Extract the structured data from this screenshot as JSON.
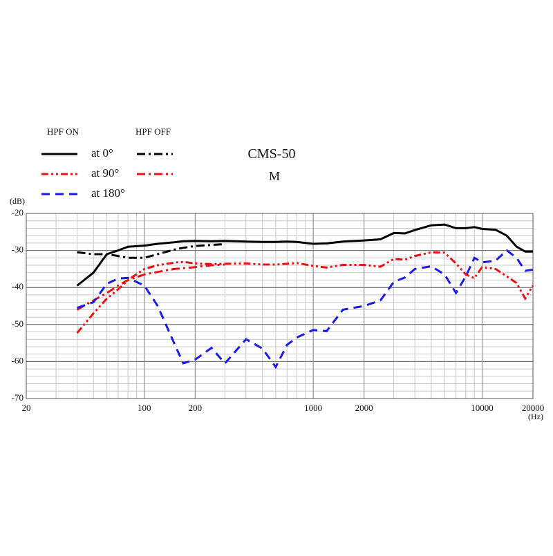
{
  "chart_data": {
    "type": "line",
    "title": "CMS-50",
    "subtitle": "M",
    "y_label": "(dB)",
    "x_label": "(Hz)",
    "legend_groups": [
      "HPF ON",
      "HPF OFF"
    ],
    "log_x": true,
    "grid": true,
    "minor_grid": true,
    "y_minor_step": 2,
    "xlim": [
      20,
      20000
    ],
    "ylim": [
      -70,
      -20
    ],
    "xticks": [
      20,
      100,
      200,
      1000,
      2000,
      10000,
      20000
    ],
    "yticks": [
      -70,
      -60,
      -50,
      -40,
      -30,
      -20
    ],
    "x": [
      40,
      50,
      60,
      70,
      80,
      100,
      120,
      150,
      170,
      200,
      250,
      300,
      400,
      500,
      600,
      700,
      800,
      1000,
      1200,
      1500,
      2000,
      2500,
      3000,
      3500,
      4000,
      5000,
      6000,
      7000,
      8000,
      9000,
      10000,
      12000,
      14000,
      16000,
      18000,
      20000
    ],
    "series": [
      {
        "name": "at 0°",
        "color": "#000000",
        "dash": "",
        "dash_hpf_off": "12 5 3 5",
        "values": [
          -39.5,
          -36,
          -31,
          -30,
          -29,
          -28.7,
          -28.2,
          -27.8,
          -27.5,
          -27.4,
          -27.5,
          -27.4,
          -27.6,
          -27.7,
          -27.7,
          -27.6,
          -27.7,
          -28.2,
          -28.1,
          -27.6,
          -27.3,
          -27.0,
          -25.3,
          -25.4,
          -24.5,
          -23.2,
          -23.0,
          -24,
          -24,
          -23.7,
          -24.2,
          -24.4,
          -26,
          -29,
          -30.3,
          -30.3
        ],
        "values_hpf_off": [
          -30.5,
          -31,
          -31,
          -31.5,
          -32,
          -32,
          -31,
          -29.8,
          -29.3,
          -28.8,
          -28.5,
          -28.3,
          null,
          null,
          null,
          null,
          null,
          null,
          null,
          null,
          null,
          null,
          null,
          null,
          null,
          null,
          null,
          null,
          null,
          null,
          null,
          null,
          null,
          null,
          null,
          null
        ]
      },
      {
        "name": "at 90°",
        "color": "#ee1111",
        "dash": "10 4 3 4 3 4",
        "dash_hpf_off": "12 5 3 5",
        "values": [
          -52.3,
          -47,
          -43,
          -40.5,
          -38,
          -35,
          -34,
          -33.3,
          -33.1,
          -33.5,
          -33.7,
          -33.6,
          -33.5,
          -33.8,
          -33.8,
          -33.6,
          -33.4,
          -34.2,
          -34.6,
          -33.9,
          -33.9,
          -34.4,
          -32.3,
          -32.5,
          -31.5,
          -30.5,
          -30.6,
          -33.5,
          -36.5,
          -37.5,
          -34.5,
          -35,
          -37,
          -38.8,
          -43,
          -39.5
        ],
        "values_hpf_off": [
          -46,
          -43.5,
          -41.5,
          -39.5,
          -38,
          -36.5,
          -35.8,
          -35,
          -34.8,
          -34.5,
          -34,
          -33.8,
          null,
          null,
          null,
          null,
          null,
          null,
          null,
          null,
          null,
          null,
          null,
          null,
          null,
          null,
          null,
          null,
          null,
          null,
          null,
          null,
          null,
          null,
          null,
          null
        ]
      },
      {
        "name": "at 180°",
        "color": "#1a1aee",
        "dash": "12 8",
        "values": [
          -45.5,
          -44,
          -39,
          -37.6,
          -37.4,
          -39.5,
          -45,
          -55,
          -60.5,
          -59.5,
          -56.3,
          -60.5,
          -54,
          -56.5,
          -61.5,
          -55.5,
          -53.5,
          -51.5,
          -51.8,
          -46,
          -45,
          -43.5,
          -38.5,
          -37.3,
          -35,
          -34.3,
          -36.5,
          -41.5,
          -37,
          -32,
          -33.2,
          -32.8,
          -30,
          -32,
          -35.5,
          -35.2
        ]
      }
    ]
  }
}
